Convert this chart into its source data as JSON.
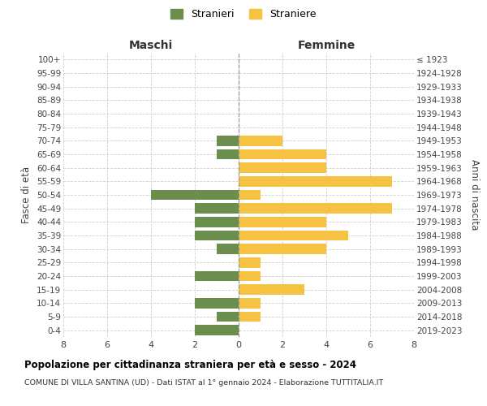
{
  "age_groups": [
    "0-4",
    "5-9",
    "10-14",
    "15-19",
    "20-24",
    "25-29",
    "30-34",
    "35-39",
    "40-44",
    "45-49",
    "50-54",
    "55-59",
    "60-64",
    "65-69",
    "70-74",
    "75-79",
    "80-84",
    "85-89",
    "90-94",
    "95-99",
    "100+"
  ],
  "birth_years": [
    "2019-2023",
    "2014-2018",
    "2009-2013",
    "2004-2008",
    "1999-2003",
    "1994-1998",
    "1989-1993",
    "1984-1988",
    "1979-1983",
    "1974-1978",
    "1969-1973",
    "1964-1968",
    "1959-1963",
    "1954-1958",
    "1949-1953",
    "1944-1948",
    "1939-1943",
    "1934-1938",
    "1929-1933",
    "1924-1928",
    "≤ 1923"
  ],
  "stranieri": [
    2,
    1,
    2,
    0,
    2,
    0,
    1,
    2,
    2,
    2,
    4,
    0,
    0,
    1,
    1,
    0,
    0,
    0,
    0,
    0,
    0
  ],
  "straniere": [
    0,
    1,
    1,
    3,
    1,
    1,
    4,
    5,
    4,
    7,
    1,
    7,
    4,
    4,
    2,
    0,
    0,
    0,
    0,
    0,
    0
  ],
  "color_stranieri": "#6b8e4e",
  "color_straniere": "#f5c242",
  "title": "Popolazione per cittadinanza straniera per età e sesso - 2024",
  "subtitle": "COMUNE DI VILLA SANTINA (UD) - Dati ISTAT al 1° gennaio 2024 - Elaborazione TUTTITALIA.IT",
  "xlabel_left": "Maschi",
  "xlabel_right": "Femmine",
  "ylabel_left": "Fasce di età",
  "ylabel_right": "Anni di nascita",
  "legend_stranieri": "Stranieri",
  "legend_straniere": "Straniere",
  "xlim": 8,
  "background_color": "#ffffff",
  "grid_color": "#d0d0d0"
}
